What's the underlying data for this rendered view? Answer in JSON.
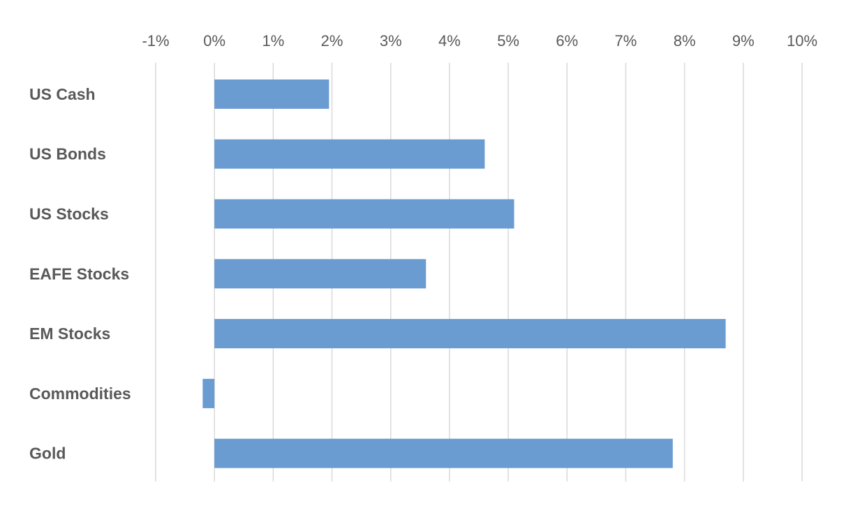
{
  "chart_data": {
    "type": "bar",
    "orientation": "horizontal",
    "title": "",
    "xlabel": "",
    "ylabel": "",
    "xlim": [
      -1,
      10
    ],
    "x_ticks": [
      "-1%",
      "0%",
      "1%",
      "2%",
      "3%",
      "4%",
      "5%",
      "6%",
      "7%",
      "8%",
      "9%",
      "10%"
    ],
    "x_axis_position": "top",
    "grid": true,
    "legend": "none",
    "categories": [
      "US Cash",
      "US Bonds",
      "US Stocks",
      "EAFE Stocks",
      "EM Stocks",
      "Commodities",
      "Gold"
    ],
    "values": [
      1.95,
      4.6,
      5.1,
      3.6,
      8.7,
      -0.2,
      7.8
    ],
    "unit": "%",
    "colors": {
      "bar": "#6a9cd2",
      "grid": "#d9d9d9",
      "text": "#595959"
    }
  }
}
